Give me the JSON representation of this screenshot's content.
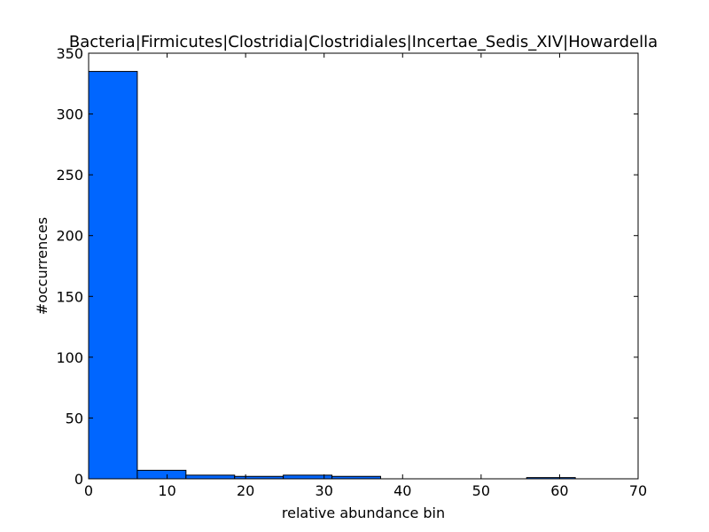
{
  "chart_data": {
    "type": "bar",
    "title": "Bacteria|Firmicutes|Clostridia|Clostridiales|Incertae_Sedis_XIV|Howardella",
    "xlabel": "relative abundance bin",
    "ylabel": "#occurrences",
    "xlim": [
      0,
      70
    ],
    "ylim": [
      0,
      350
    ],
    "xticks": [
      0,
      10,
      20,
      30,
      40,
      50,
      60,
      70
    ],
    "yticks": [
      0,
      50,
      100,
      150,
      200,
      250,
      300,
      350
    ],
    "grid": false,
    "bar_color": "#0066ff",
    "bins": [
      {
        "x0": 0.0,
        "x1": 6.2,
        "count": 335
      },
      {
        "x0": 6.2,
        "x1": 12.4,
        "count": 7
      },
      {
        "x0": 12.4,
        "x1": 18.6,
        "count": 3
      },
      {
        "x0": 18.6,
        "x1": 24.8,
        "count": 2
      },
      {
        "x0": 24.8,
        "x1": 31.0,
        "count": 3
      },
      {
        "x0": 31.0,
        "x1": 37.2,
        "count": 2
      },
      {
        "x0": 37.2,
        "x1": 43.4,
        "count": 0
      },
      {
        "x0": 43.4,
        "x1": 49.6,
        "count": 0
      },
      {
        "x0": 49.6,
        "x1": 55.8,
        "count": 0
      },
      {
        "x0": 55.8,
        "x1": 62.0,
        "count": 1
      }
    ]
  }
}
